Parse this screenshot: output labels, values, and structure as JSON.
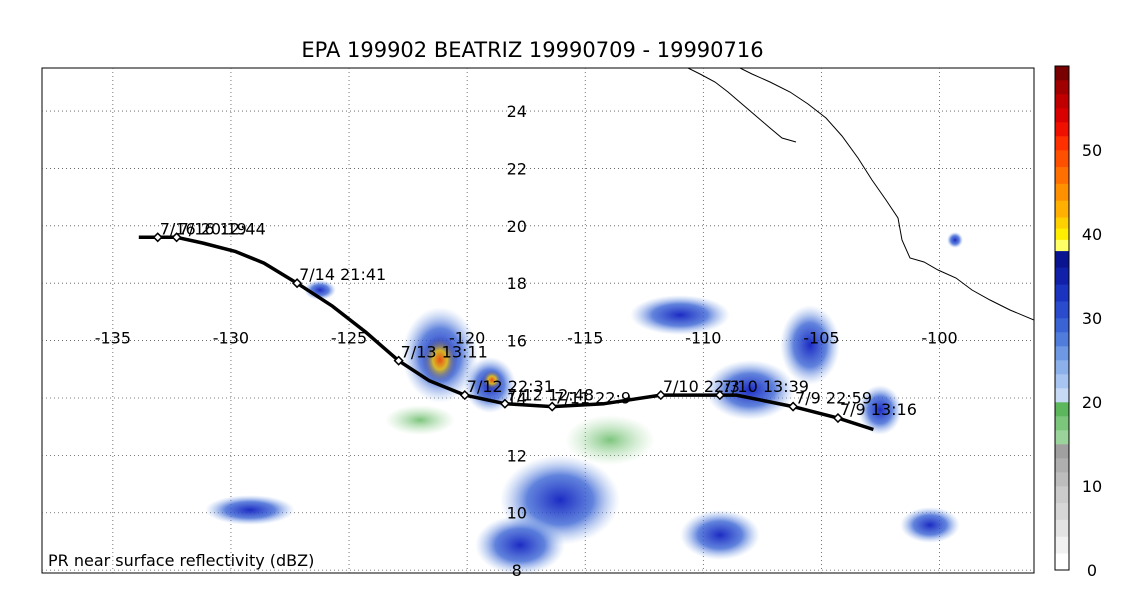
{
  "title": "EPA 199902 BEATRIZ 19990709 - 19990716",
  "caption": "PR near surface reflectivity (dBZ)",
  "map": {
    "lon_range": [
      -138,
      -96
    ],
    "lat_range": [
      7.9,
      25.5
    ],
    "lon_ticks": [
      "-135",
      "-130",
      "-125",
      "-120",
      "-115",
      "-110",
      "-105",
      "-100"
    ],
    "lon_tick_values": [
      -135,
      -130,
      -125,
      -120,
      -115,
      -110,
      -105,
      -100
    ],
    "lat_ticks": [
      "8",
      "10",
      "12",
      "14",
      "16",
      "18",
      "20",
      "22",
      "24"
    ],
    "lat_tick_values": [
      8,
      10,
      12,
      14,
      16,
      18,
      20,
      22,
      24
    ],
    "grid": true,
    "coastline_color": "#000000"
  },
  "track": {
    "line_color": "#000000",
    "points": [
      {
        "lon": -133.9,
        "lat": 19.6
      },
      {
        "lon": -133.1,
        "lat": 19.6
      },
      {
        "lon": -132.3,
        "lat": 19.6
      },
      {
        "lon": -131.2,
        "lat": 19.4
      },
      {
        "lon": -129.8,
        "lat": 19.1
      },
      {
        "lon": -128.6,
        "lat": 18.7
      },
      {
        "lon": -127.2,
        "lat": 18.0
      },
      {
        "lon": -125.7,
        "lat": 17.2
      },
      {
        "lon": -124.3,
        "lat": 16.3
      },
      {
        "lon": -122.9,
        "lat": 15.3
      },
      {
        "lon": -121.6,
        "lat": 14.6
      },
      {
        "lon": -120.1,
        "lat": 14.1
      },
      {
        "lon": -118.4,
        "lat": 13.8
      },
      {
        "lon": -116.4,
        "lat": 13.7
      },
      {
        "lon": -114.2,
        "lat": 13.8
      },
      {
        "lon": -111.8,
        "lat": 14.1
      },
      {
        "lon": -108.6,
        "lat": 14.1
      },
      {
        "lon": -106.2,
        "lat": 13.7
      },
      {
        "lon": -104.3,
        "lat": 13.3
      },
      {
        "lon": -102.8,
        "lat": 12.9
      }
    ],
    "overpasses": [
      {
        "label": "7/16 20:19",
        "lon": -133.1,
        "lat": 19.6
      },
      {
        "label": "7/16 12:44",
        "lon": -132.3,
        "lat": 19.6
      },
      {
        "label": "7/14 21:41",
        "lon": -127.2,
        "lat": 18.0
      },
      {
        "label": "7/13 13:11",
        "lon": -122.9,
        "lat": 15.3
      },
      {
        "label": "7/12 22:31",
        "lon": -120.1,
        "lat": 14.1
      },
      {
        "label": "7/12 12:48",
        "lon": -118.4,
        "lat": 13.8
      },
      {
        "label": "7/11 22:9",
        "lon": -116.4,
        "lat": 13.7
      },
      {
        "label": "7/10 22:3",
        "lon": -111.8,
        "lat": 14.1
      },
      {
        "label": "7/10 13:39",
        "lon": -109.3,
        "lat": 14.1
      },
      {
        "label": "7/9 22:59",
        "lon": -106.2,
        "lat": 13.7
      },
      {
        "label": "7/9 13:16",
        "lon": -104.3,
        "lat": 13.3
      }
    ]
  },
  "colorbar": {
    "min": 0,
    "max": 60,
    "tick_labels": [
      "0",
      "10",
      "20",
      "30",
      "40",
      "50"
    ],
    "tick_values": [
      0,
      10,
      20,
      30,
      40,
      50
    ],
    "segments": [
      {
        "from": 0,
        "to": 10,
        "colors": [
          "#ffffff",
          "#f1f1f1",
          "#e3e3e3",
          "#d6d6d6",
          "#cbcbcb"
        ]
      },
      {
        "from": 10,
        "to": 15,
        "colors": [
          "#bdbdbd",
          "#afafaf",
          "#a0a0a0"
        ]
      },
      {
        "from": 15,
        "to": 20,
        "colors": [
          "#9ad49a",
          "#7cc67c",
          "#5cb65c"
        ]
      },
      {
        "from": 20,
        "to": 25,
        "colors": [
          "#c6daf6",
          "#a8c4f0",
          "#8cb0ea"
        ]
      },
      {
        "from": 25,
        "to": 30,
        "colors": [
          "#6e98e4",
          "#507ddc",
          "#3a64d4"
        ]
      },
      {
        "from": 30,
        "to": 38,
        "colors": [
          "#2a4ccc",
          "#1a34c0",
          "#1020a8",
          "#0a1490"
        ]
      },
      {
        "from": 38,
        "to": 42,
        "colors": [
          "#ffff66",
          "#ffee00",
          "#ffd000"
        ]
      },
      {
        "from": 42,
        "to": 50,
        "colors": [
          "#ffb000",
          "#ff9000",
          "#ff7000",
          "#ff5000"
        ]
      },
      {
        "from": 50,
        "to": 60,
        "colors": [
          "#ff3000",
          "#f01000",
          "#d80000",
          "#c00000",
          "#a00000",
          "#780000"
        ]
      }
    ]
  }
}
